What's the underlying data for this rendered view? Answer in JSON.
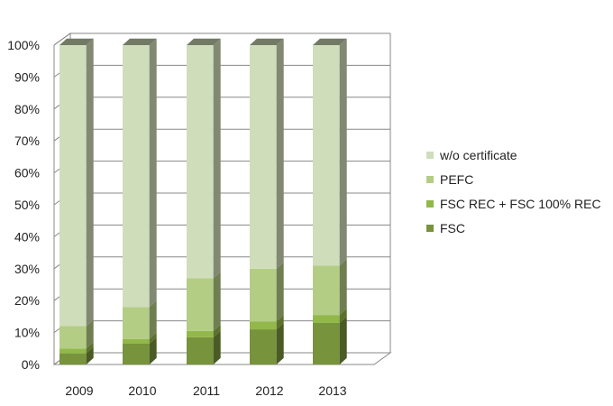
{
  "chart_data": {
    "type": "bar",
    "stacked": true,
    "normalized": true,
    "style": "3d-stacked-column",
    "categories": [
      "2009",
      "2010",
      "2011",
      "2012",
      "2013"
    ],
    "series": [
      {
        "name": "FSC",
        "values": [
          3.5,
          6.5,
          8.5,
          11,
          13
        ],
        "color": "#77933c"
      },
      {
        "name": "FSC REC + FSC 100% REC",
        "values": [
          1.5,
          1.5,
          2,
          2.5,
          2.5
        ],
        "color": "#92b84a"
      },
      {
        "name": "PEFC",
        "values": [
          7,
          10,
          16.5,
          16.5,
          15.5
        ],
        "color": "#b3cd85"
      },
      {
        "name": "w/o certificate",
        "values": [
          88,
          82,
          73,
          70,
          69
        ],
        "color": "#d0ddba"
      }
    ],
    "yticks": [
      "0%",
      "10%",
      "20%",
      "30%",
      "40%",
      "50%",
      "60%",
      "70%",
      "80%",
      "90%",
      "100%"
    ],
    "ylim": [
      0,
      100
    ],
    "grid": true,
    "legend_position": "right",
    "legend_order": [
      "w/o certificate",
      "PEFC",
      "FSC REC + FSC 100% REC",
      "FSC"
    ],
    "title": "",
    "xlabel": "",
    "ylabel": ""
  }
}
